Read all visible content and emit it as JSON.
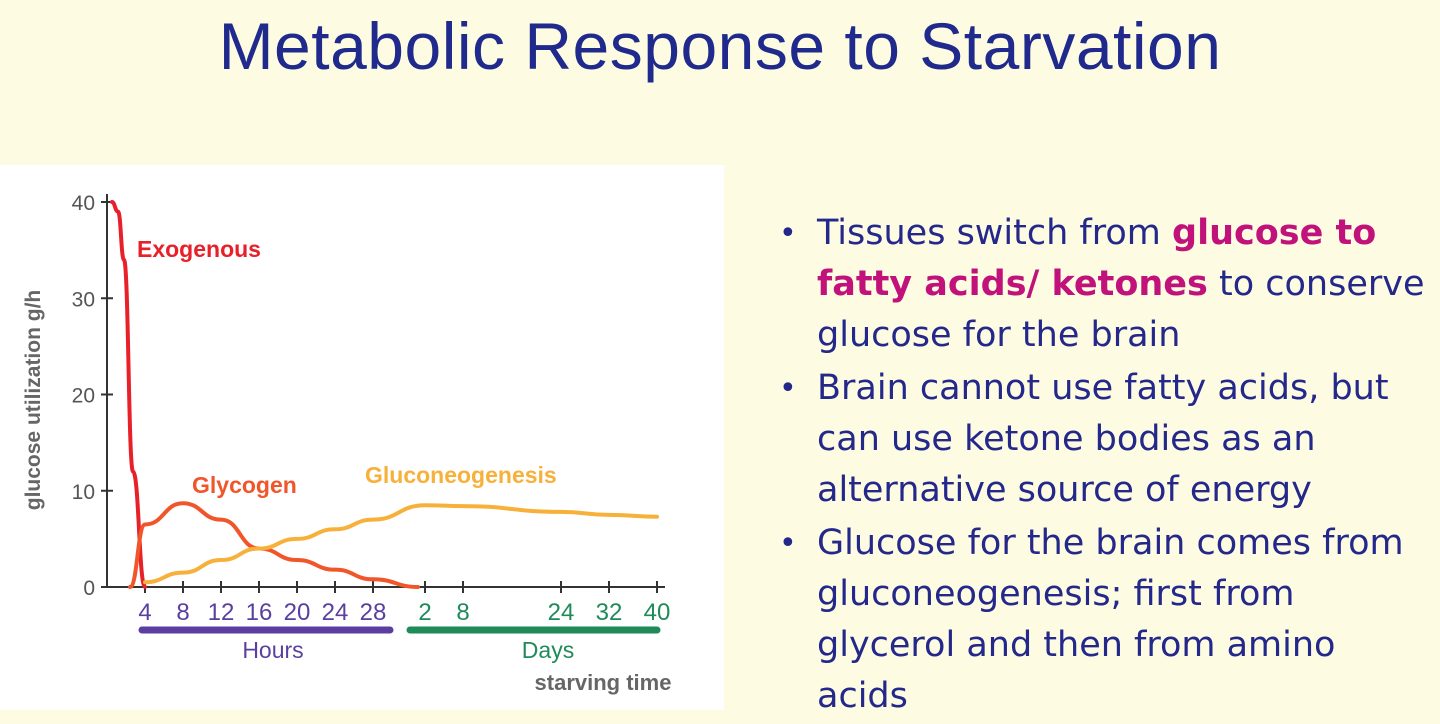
{
  "slide": {
    "title": "Metabolic Response to Starvation",
    "bullets": [
      {
        "parts": [
          {
            "text": "Tissues switch from ",
            "highlight": false
          },
          {
            "text": "glucose to fatty acids/ ketones",
            "highlight": true
          },
          {
            "text": " to conserve glucose for the brain",
            "highlight": false
          }
        ]
      },
      {
        "parts": [
          {
            "text": "Brain cannot use fatty acids, but can use ketone bodies as an alternative source of energy",
            "highlight": false
          }
        ]
      },
      {
        "parts": [
          {
            "text": "Glucose for the brain comes from gluconeogenesis; first from glycerol and then from amino acids",
            "highlight": false
          }
        ]
      }
    ],
    "colors": {
      "title": "#1f2a8c",
      "bullet_text": "#23288a",
      "highlight": "#c0127a",
      "background": "#fdfbe2"
    }
  },
  "chart_data": {
    "type": "line",
    "title": "",
    "ylabel": "glucose utilization g/h",
    "xlabel": "starving time",
    "ylim": [
      0,
      40
    ],
    "yticks": [
      "0",
      "10",
      "20",
      "30",
      "40"
    ],
    "xticks": [
      "4",
      "8",
      "12",
      "16",
      "20",
      "24",
      "28",
      "2",
      "8",
      "24",
      "32",
      "40"
    ],
    "xtick_groups": [
      {
        "label": "Hours",
        "ticks": [
          "4",
          "8",
          "12",
          "16",
          "20",
          "24",
          "28"
        ],
        "color": "#5a3fa0"
      },
      {
        "label": "Days",
        "ticks": [
          "2",
          "8",
          "24",
          "32",
          "40"
        ],
        "color": "#1f8a5a"
      }
    ],
    "series": [
      {
        "name": "Exogenous",
        "color": "#e8202a",
        "x": [
          "0",
          "1",
          "2",
          "3",
          "4"
        ],
        "values": [
          40,
          39,
          34,
          12,
          0
        ]
      },
      {
        "name": "Glycogen",
        "color": "#f0562a",
        "x": [
          "1",
          "4",
          "8",
          "12",
          "16",
          "20",
          "24",
          "28",
          "2"
        ],
        "values": [
          0,
          6.5,
          8.7,
          7,
          4,
          2.8,
          1.8,
          0.8,
          0
        ]
      },
      {
        "name": "Gluconeogenesis",
        "color": "#f7b13a",
        "x": [
          "4",
          "8",
          "12",
          "16",
          "20",
          "24",
          "28",
          "2",
          "8",
          "24",
          "32",
          "40"
        ],
        "values": [
          0.5,
          1.5,
          2.8,
          4,
          5,
          6,
          7,
          8.5,
          8.4,
          7.8,
          7.5,
          7.3
        ]
      }
    ]
  }
}
